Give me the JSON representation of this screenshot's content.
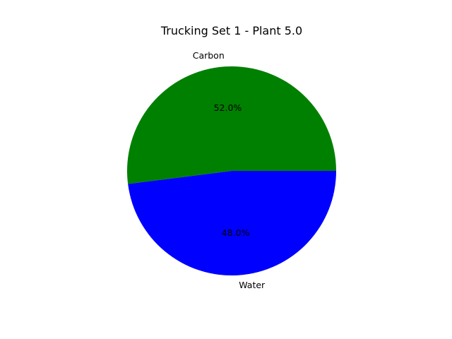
{
  "chart_data": {
    "type": "pie",
    "title": "Trucking Set 1 - Plant 5.0",
    "categories": [
      "Carbon",
      "Water"
    ],
    "values": [
      52.0,
      48.0
    ],
    "percent_labels": [
      "52.0%",
      "48.0%"
    ],
    "colors": [
      "#008000",
      "#0000ff"
    ],
    "start_angle_deg": 0,
    "direction": "counterclockwise",
    "legend": "none"
  }
}
